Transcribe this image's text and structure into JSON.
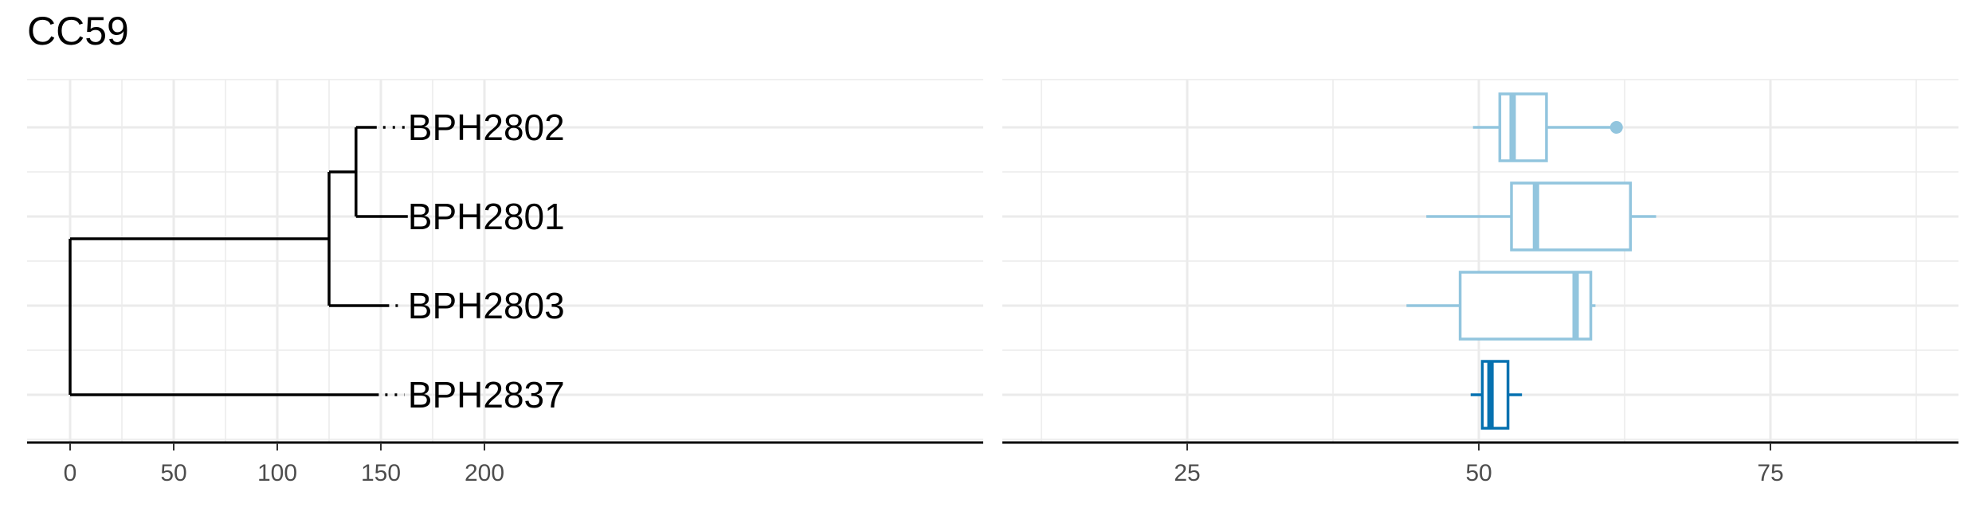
{
  "title": "CC59",
  "chart_data": [
    {
      "type": "dendrogram",
      "x_ticks": [
        0,
        50,
        100,
        150,
        200
      ],
      "xlim": [
        -10,
        220
      ],
      "grid": true,
      "tips": [
        {
          "label": "BPH2802",
          "branch_end": 148
        },
        {
          "label": "BPH2801",
          "branch_end": 163
        },
        {
          "label": "BPH2803",
          "branch_end": 154
        },
        {
          "label": "BPH2837",
          "branch_end": 149
        }
      ],
      "nodes": {
        "root": 0,
        "clade_3": 125,
        "clade_2": 138
      }
    },
    {
      "type": "boxplot",
      "x_ticks": [
        25,
        50,
        75
      ],
      "xlim": [
        10,
        90
      ],
      "grid": true,
      "series": [
        {
          "label": "BPH2802",
          "whisker_low": 49.5,
          "q1": 51.8,
          "median": 52.9,
          "q3": 55.8,
          "whisker_high": 61.5,
          "outliers": [
            61.8
          ],
          "color": "#92c5de"
        },
        {
          "label": "BPH2801",
          "whisker_low": 45.5,
          "q1": 52.8,
          "median": 54.9,
          "q3": 63.0,
          "whisker_high": 65.2,
          "outliers": [],
          "color": "#92c5de"
        },
        {
          "label": "BPH2803",
          "whisker_low": 43.8,
          "q1": 48.4,
          "median": 58.3,
          "q3": 59.6,
          "whisker_high": 60.0,
          "outliers": [],
          "color": "#92c5de"
        },
        {
          "label": "BPH2837",
          "whisker_low": 49.3,
          "q1": 50.3,
          "median": 51.0,
          "q3": 52.5,
          "whisker_high": 53.7,
          "outliers": [],
          "color": "#0571b0"
        }
      ]
    }
  ]
}
